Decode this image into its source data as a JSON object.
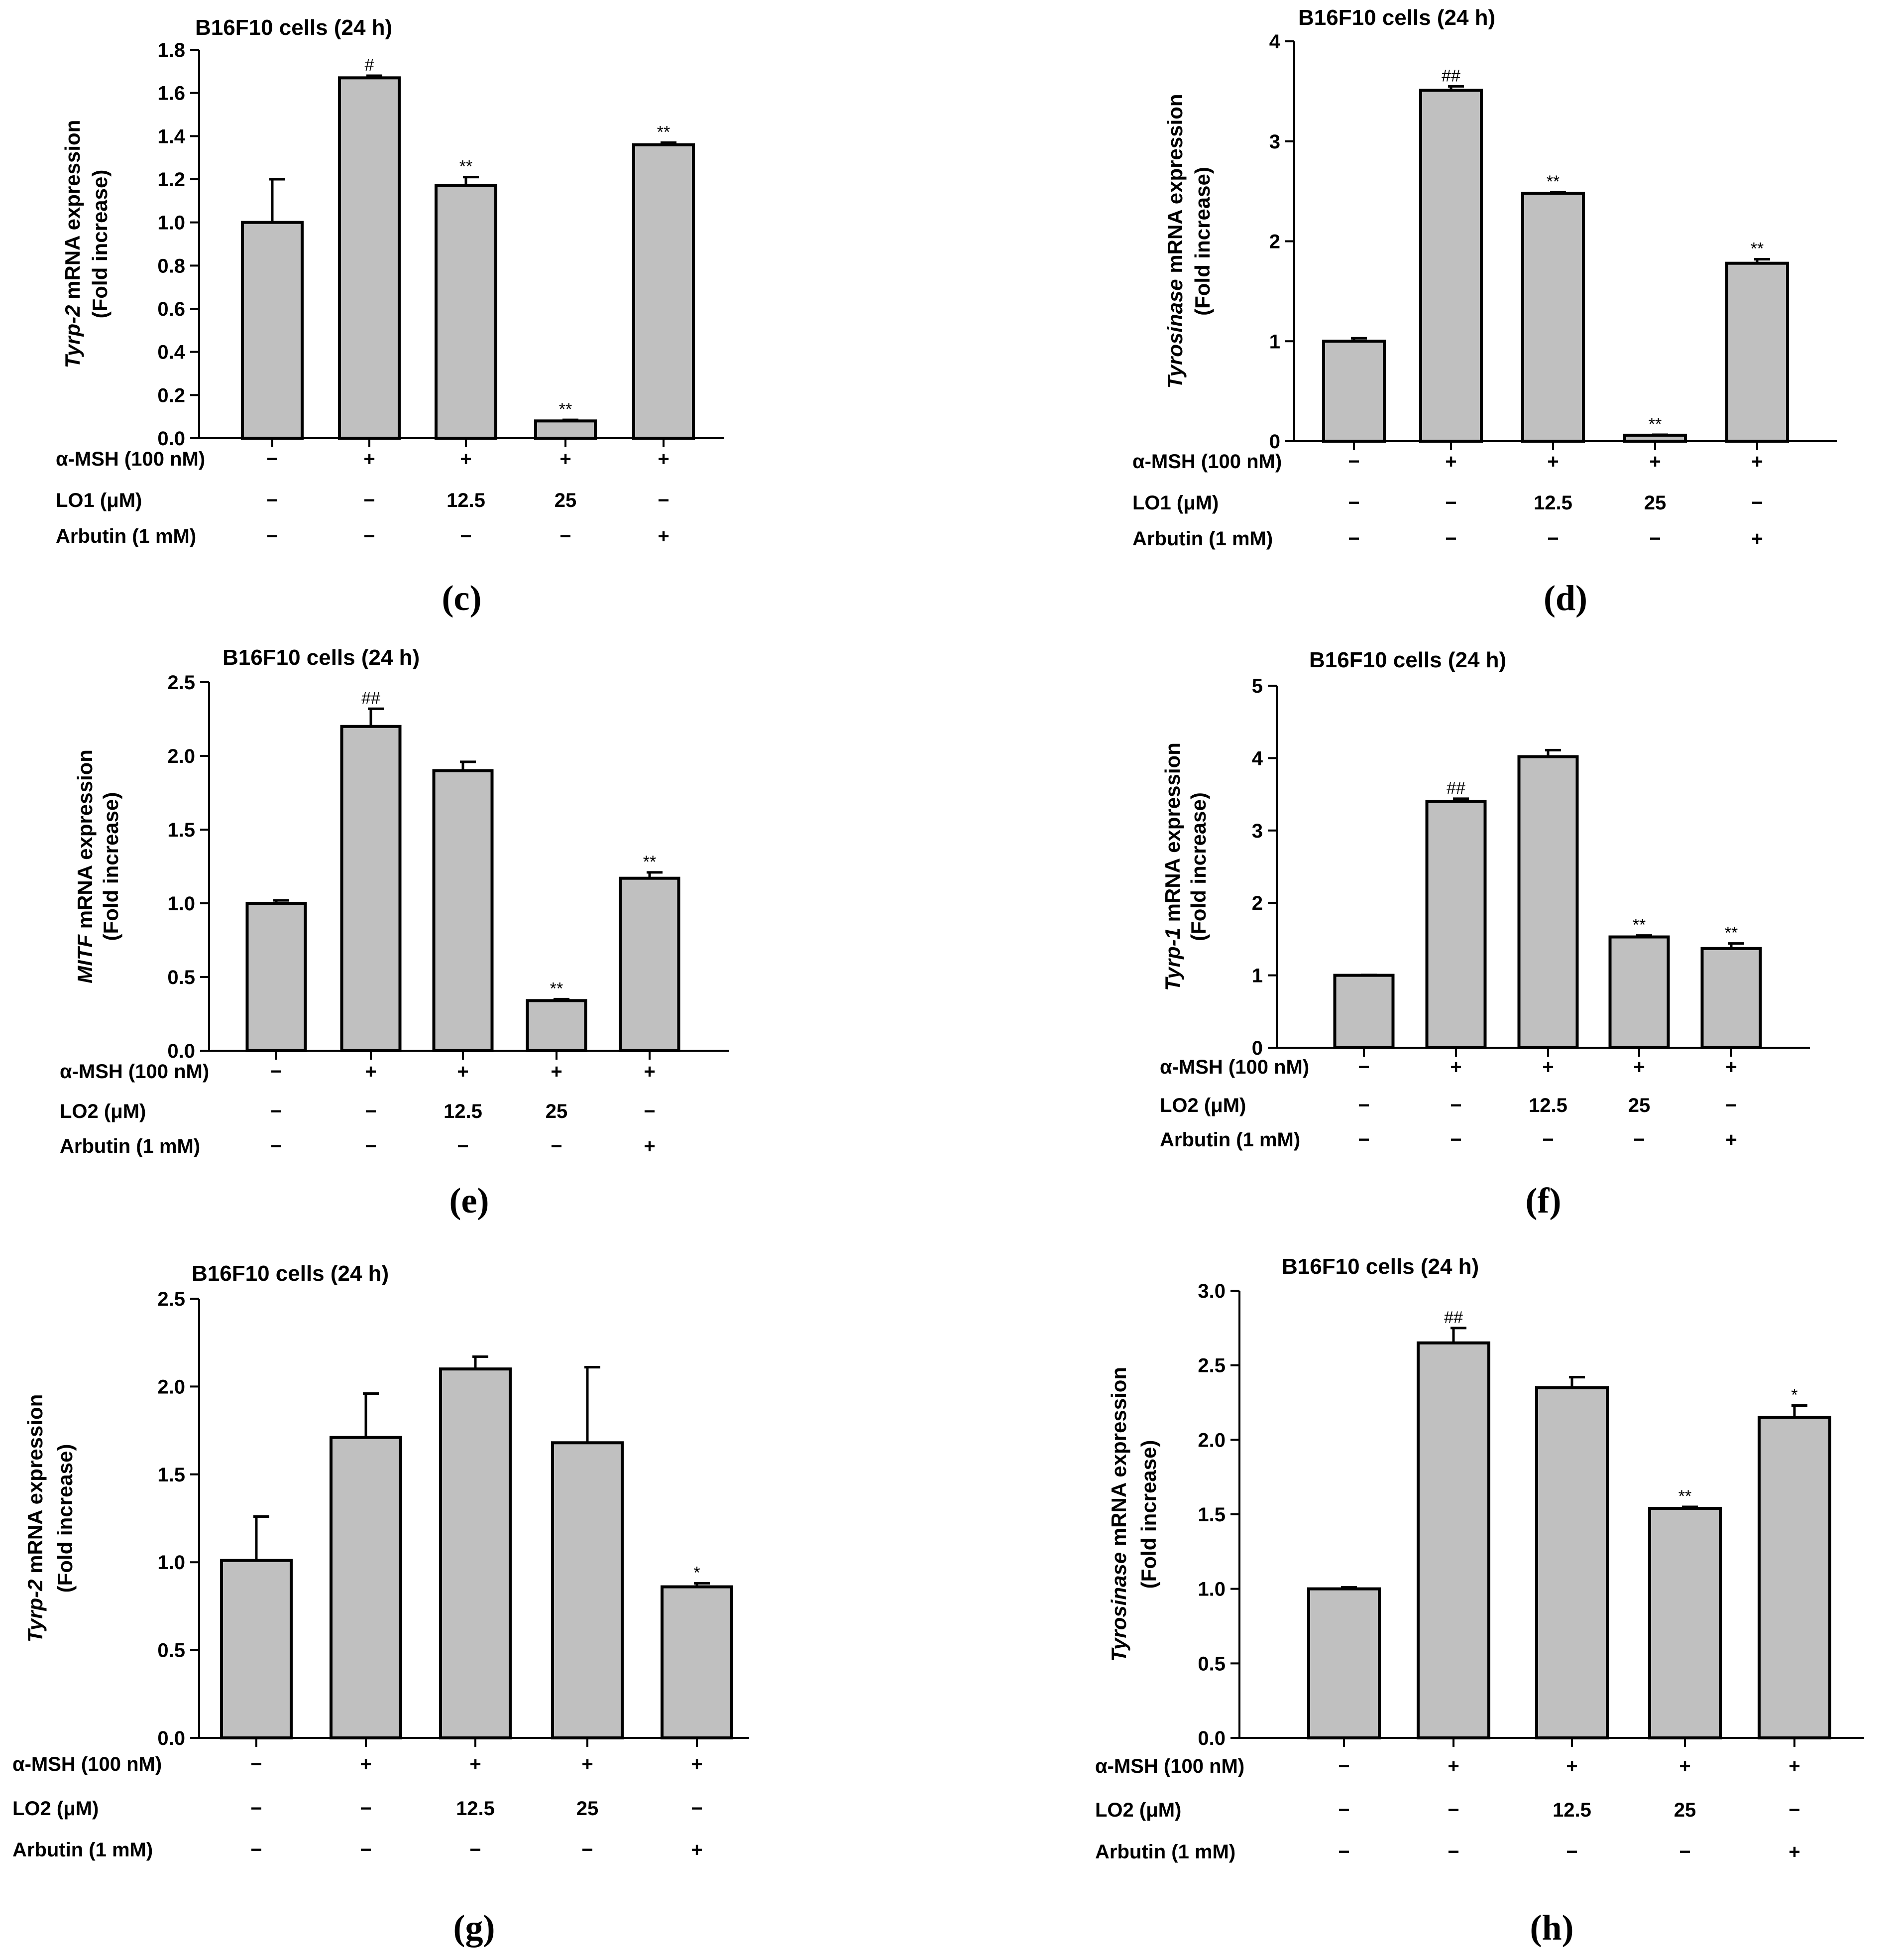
{
  "colors": {
    "bar_fill": "#c0c0c0",
    "bar_stroke": "#000000",
    "axis": "#000000",
    "text": "#000000"
  },
  "chart_data": [
    {
      "id": "c",
      "panel_label": "(c)",
      "type": "bar",
      "title": "B16F10 cells (24 h)",
      "ylabel_gene": "Tyrp-2",
      "ylabel_rest": " mRNA expression",
      "ylabel_line2": "(Fold increase)",
      "ylim": [
        0,
        1.8
      ],
      "yticks": [
        0,
        0.2,
        0.4,
        0.6,
        0.8,
        1.0,
        1.2,
        1.4,
        1.6,
        1.8
      ],
      "ytick_labels": [
        "0.0",
        "0.2",
        "0.4",
        "0.6",
        "0.8",
        "1.0",
        "1.2",
        "1.4",
        "1.6",
        "1.8"
      ],
      "values": [
        1.0,
        1.67,
        1.17,
        0.08,
        1.36
      ],
      "errors": [
        0.2,
        0.01,
        0.04,
        0.005,
        0.01
      ],
      "sig": [
        "",
        "#",
        "**",
        "**",
        "**"
      ],
      "rows": [
        {
          "label": "α-MSH (100 nM)",
          "values": [
            "−",
            "+",
            "+",
            "+",
            "+"
          ]
        },
        {
          "label": "LO1 (μM)",
          "values": [
            "−",
            "−",
            "12.5",
            "25",
            "−"
          ]
        },
        {
          "label": "Arbutin (1 mM)",
          "values": [
            "−",
            "−",
            "−",
            "−",
            "+"
          ]
        }
      ]
    },
    {
      "id": "d",
      "panel_label": "(d)",
      "type": "bar",
      "title": "B16F10 cells (24 h)",
      "ylabel_gene": "Tyrosinase",
      "ylabel_rest": " mRNA expression",
      "ylabel_line2": "(Fold increase)",
      "ylim": [
        0,
        4
      ],
      "yticks": [
        0,
        1,
        2,
        3,
        4
      ],
      "ytick_labels": [
        "0",
        "1",
        "2",
        "3",
        "4"
      ],
      "values": [
        1.0,
        3.51,
        2.48,
        0.06,
        1.78
      ],
      "errors": [
        0.03,
        0.04,
        0.01,
        0.005,
        0.04
      ],
      "sig": [
        "",
        "##",
        "**",
        "**",
        "**"
      ],
      "rows": [
        {
          "label": "α-MSH (100 nM)",
          "values": [
            "−",
            "+",
            "+",
            "+",
            "+"
          ]
        },
        {
          "label": "LO1 (μM)",
          "values": [
            "−",
            "−",
            "12.5",
            "25",
            "−"
          ]
        },
        {
          "label": "Arbutin (1 mM)",
          "values": [
            "−",
            "−",
            "−",
            "−",
            "+"
          ]
        }
      ]
    },
    {
      "id": "e",
      "panel_label": "(e)",
      "type": "bar",
      "title": "B16F10 cells (24 h)",
      "ylabel_gene": "MITF",
      "ylabel_rest": " mRNA expression",
      "ylabel_line2": "(Fold increase)",
      "ylim": [
        0,
        2.5
      ],
      "yticks": [
        0,
        0.5,
        1.0,
        1.5,
        2.0,
        2.5
      ],
      "ytick_labels": [
        "0.0",
        "0.5",
        "1.0",
        "1.5",
        "2.0",
        "2.5"
      ],
      "values": [
        1.0,
        2.2,
        1.9,
        0.34,
        1.17
      ],
      "errors": [
        0.02,
        0.12,
        0.06,
        0.01,
        0.04
      ],
      "sig": [
        "",
        "##",
        "",
        "**",
        "**"
      ],
      "rows": [
        {
          "label": "α-MSH (100 nM)",
          "values": [
            "−",
            "+",
            "+",
            "+",
            "+"
          ]
        },
        {
          "label": "LO2 (μM)",
          "values": [
            "−",
            "−",
            "12.5",
            "25",
            "−"
          ]
        },
        {
          "label": "Arbutin (1 mM)",
          "values": [
            "−",
            "−",
            "−",
            "−",
            "+"
          ]
        }
      ]
    },
    {
      "id": "f",
      "panel_label": "(f)",
      "type": "bar",
      "title": "B16F10 cells (24 h)",
      "ylabel_gene": "Tyrp-1",
      "ylabel_rest": " mRNA expression",
      "ylabel_line2": "(Fold increase)",
      "ylim": [
        0,
        5
      ],
      "yticks": [
        0,
        1,
        2,
        3,
        4,
        5
      ],
      "ytick_labels": [
        "0",
        "1",
        "2",
        "3",
        "4",
        "5"
      ],
      "values": [
        1.0,
        3.4,
        4.02,
        1.53,
        1.37
      ],
      "errors": [
        0.005,
        0.04,
        0.09,
        0.02,
        0.07
      ],
      "sig": [
        "",
        "##",
        "",
        "**",
        "**"
      ],
      "rows": [
        {
          "label": "α-MSH (100 nM)",
          "values": [
            "−",
            "+",
            "+",
            "+",
            "+"
          ]
        },
        {
          "label": "LO2 (μM)",
          "values": [
            "−",
            "−",
            "12.5",
            "25",
            "−"
          ]
        },
        {
          "label": "Arbutin (1 mM)",
          "values": [
            "−",
            "−",
            "−",
            "−",
            "+"
          ]
        }
      ]
    },
    {
      "id": "g",
      "panel_label": "(g)",
      "type": "bar",
      "title": "B16F10 cells (24 h)",
      "ylabel_gene": "Tyrp-2",
      "ylabel_rest": " mRNA expression",
      "ylabel_line2": "(Fold increase)",
      "ylim": [
        0,
        2.5
      ],
      "yticks": [
        0,
        0.5,
        1.0,
        1.5,
        2.0,
        2.5
      ],
      "ytick_labels": [
        "0.0",
        "0.5",
        "1.0",
        "1.5",
        "2.0",
        "2.5"
      ],
      "values": [
        1.01,
        1.71,
        2.1,
        1.68,
        0.86
      ],
      "errors": [
        0.25,
        0.25,
        0.07,
        0.43,
        0.02
      ],
      "sig": [
        "",
        "",
        "",
        "",
        "*"
      ],
      "rows": [
        {
          "label": "α-MSH (100 nM)",
          "values": [
            "−",
            "+",
            "+",
            "+",
            "+"
          ]
        },
        {
          "label": "LO2 (μM)",
          "values": [
            "−",
            "−",
            "12.5",
            "25",
            "−"
          ]
        },
        {
          "label": "Arbutin (1 mM)",
          "values": [
            "−",
            "−",
            "−",
            "−",
            "+"
          ]
        }
      ]
    },
    {
      "id": "h",
      "panel_label": "(h)",
      "type": "bar",
      "title": "B16F10 cells (24 h)",
      "ylabel_gene": "Tyrosinase",
      "ylabel_rest": " mRNA expression",
      "ylabel_line2": "(Fold increase)",
      "ylim": [
        0,
        3.0
      ],
      "yticks": [
        0,
        0.5,
        1.0,
        1.5,
        2.0,
        2.5,
        3.0
      ],
      "ytick_labels": [
        "0.0",
        "0.5",
        "1.0",
        "1.5",
        "2.0",
        "2.5",
        "3.0"
      ],
      "values": [
        1.0,
        2.65,
        2.35,
        1.54,
        2.15
      ],
      "errors": [
        0.01,
        0.1,
        0.07,
        0.01,
        0.08
      ],
      "sig": [
        "",
        "##",
        "",
        "**",
        "*"
      ],
      "rows": [
        {
          "label": "α-MSH (100 nM)",
          "values": [
            "−",
            "+",
            "+",
            "+",
            "+"
          ]
        },
        {
          "label": "LO2 (μM)",
          "values": [
            "−",
            "−",
            "12.5",
            "25",
            "−"
          ]
        },
        {
          "label": "Arbutin (1 mM)",
          "values": [
            "−",
            "−",
            "−",
            "−",
            "+"
          ]
        }
      ]
    }
  ]
}
